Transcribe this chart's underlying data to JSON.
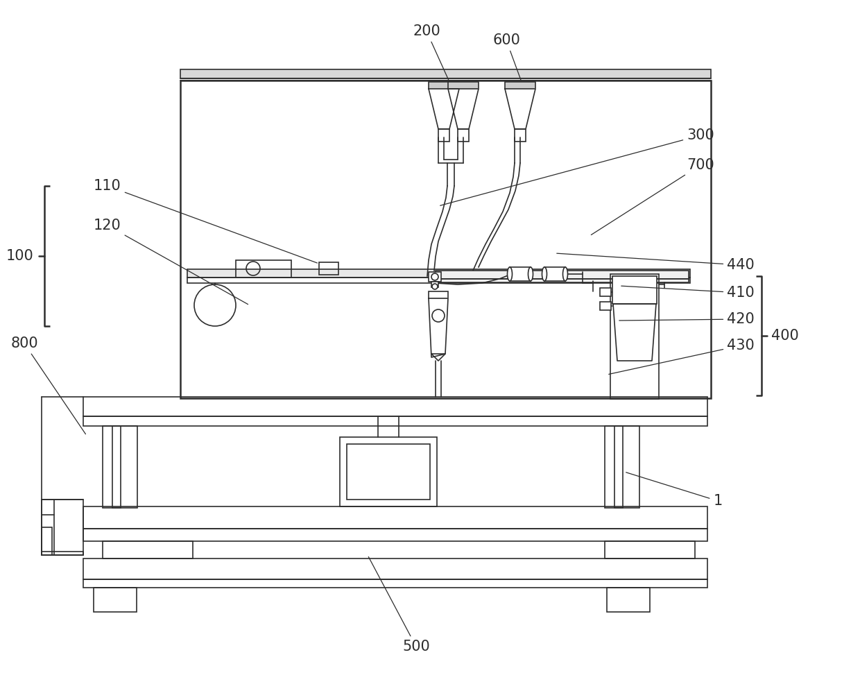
{
  "bg": "#ffffff",
  "lc": "#2d2d2d",
  "lw": 1.2,
  "lw2": 1.8,
  "fs": 15
}
